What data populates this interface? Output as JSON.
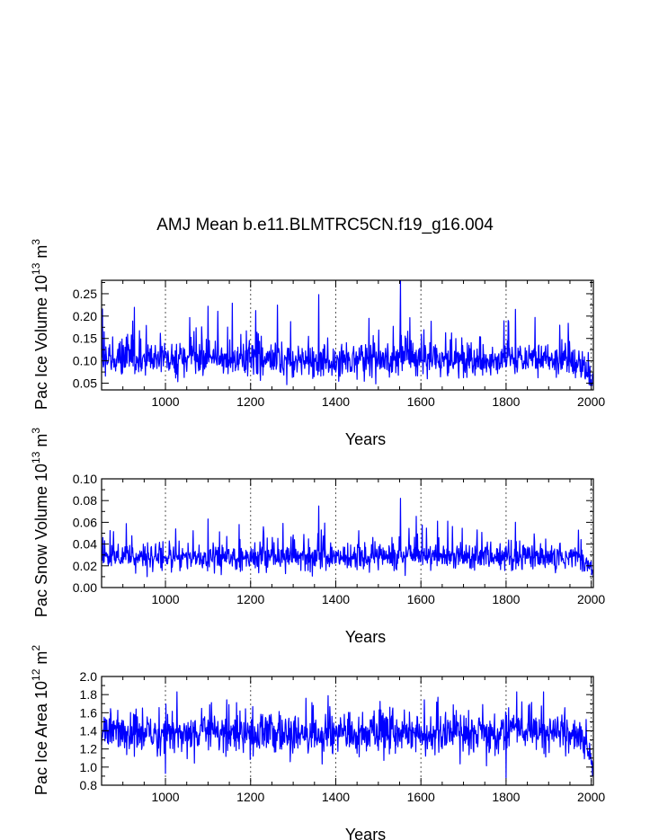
{
  "title": "AMJ Mean b.e11.BLMTRC5CN.f19_g16.004",
  "line_color": "#0000ff",
  "chart_data": [
    {
      "type": "line",
      "ylabel": "Pac Ice Volume 10",
      "ylabel_exp": "13",
      "ylabel_unit": "m",
      "ylabel_unit_exp": "3",
      "xlabel": "Years",
      "xlim": [
        850,
        2005
      ],
      "ylim": [
        0.035,
        0.28
      ],
      "xticks": [
        1000,
        1200,
        1400,
        1600,
        1800,
        2000
      ],
      "xtick_labels": [
        "1000",
        "1200",
        "1400",
        "1600",
        "1800",
        "2000"
      ],
      "yticks": [
        0.05,
        0.1,
        0.15,
        0.2,
        0.25
      ],
      "ytick_labels": [
        "0.05",
        "0.10",
        "0.15",
        "0.20",
        "0.25"
      ],
      "grid_x": [
        1000,
        1200,
        1400,
        1600,
        1800,
        2000
      ],
      "series": {
        "start_year": 850,
        "end_year": 2005,
        "base": 0.102,
        "noise": 0.023,
        "spike_prob": 0.07,
        "spike_size": 0.06,
        "seed": 7,
        "trend": [
          [
            850,
            0.0
          ],
          [
            1950,
            0.0
          ],
          [
            1980,
            -0.015
          ],
          [
            2005,
            -0.045
          ]
        ],
        "peaks": [
          [
            856,
            0.165
          ],
          [
            1360,
            0.248
          ],
          [
            1552,
            0.278
          ],
          [
            1822,
            0.215
          ],
          [
            1100,
            0.222
          ]
        ],
        "min": 0.045,
        "max": 0.278
      }
    },
    {
      "type": "line",
      "ylabel": "Pac Snow Volume 10",
      "ylabel_exp": "13",
      "ylabel_unit": "m",
      "ylabel_unit_exp": "3",
      "xlabel": "Years",
      "xlim": [
        850,
        2005
      ],
      "ylim": [
        0.0,
        0.1
      ],
      "xticks": [
        1000,
        1200,
        1400,
        1600,
        1800,
        2000
      ],
      "xtick_labels": [
        "1000",
        "1200",
        "1400",
        "1600",
        "1800",
        "2000"
      ],
      "yticks": [
        0.0,
        0.02,
        0.04,
        0.06,
        0.08,
        0.1
      ],
      "ytick_labels": [
        "0.00",
        "0.02",
        "0.04",
        "0.06",
        "0.08",
        "0.10"
      ],
      "grid_x": [
        1000,
        1200,
        1400,
        1600,
        1800,
        2000
      ],
      "series": {
        "start_year": 850,
        "end_year": 2005,
        "base": 0.028,
        "noise": 0.0075,
        "spike_prob": 0.07,
        "spike_size": 0.018,
        "seed": 11,
        "trend": [
          [
            850,
            0.0
          ],
          [
            1950,
            0.0
          ],
          [
            1980,
            -0.004
          ],
          [
            2005,
            -0.014
          ]
        ],
        "peaks": [
          [
            853,
            0.046
          ],
          [
            1360,
            0.075
          ],
          [
            1552,
            0.082
          ],
          [
            1822,
            0.06
          ],
          [
            1100,
            0.063
          ]
        ],
        "min": 0.01,
        "max": 0.082
      }
    },
    {
      "type": "line",
      "ylabel": "Pac Ice Area 10",
      "ylabel_exp": "12",
      "ylabel_unit": "m",
      "ylabel_unit_exp": "2",
      "xlabel": "Years",
      "xlim": [
        850,
        2005
      ],
      "ylim": [
        0.8,
        2.0
      ],
      "xticks": [
        1000,
        1200,
        1400,
        1600,
        1800,
        2000
      ],
      "xtick_labels": [
        "1000",
        "1200",
        "1400",
        "1600",
        "1800",
        "2000"
      ],
      "yticks": [
        0.8,
        1.0,
        1.2,
        1.4,
        1.6,
        1.8,
        2.0
      ],
      "ytick_labels": [
        "0.8",
        "1.0",
        "1.2",
        "1.4",
        "1.6",
        "1.8",
        "2.0"
      ],
      "grid_x": [
        1000,
        1200,
        1400,
        1600,
        1800,
        2000
      ],
      "series": {
        "start_year": 850,
        "end_year": 2005,
        "base": 1.37,
        "noise": 0.14,
        "spike_prob": 0.05,
        "spike_size": 0.2,
        "seed": 23,
        "trend": [
          [
            850,
            0.0
          ],
          [
            1950,
            0.0
          ],
          [
            1980,
            -0.08
          ],
          [
            2005,
            -0.4
          ]
        ],
        "peaks": [
          [
            1825,
            1.83
          ],
          [
            1330,
            1.76
          ],
          [
            1000,
            0.93
          ],
          [
            1800,
            0.88
          ],
          [
            2003,
            0.9
          ]
        ],
        "min": 0.88,
        "max": 1.83
      }
    }
  ]
}
